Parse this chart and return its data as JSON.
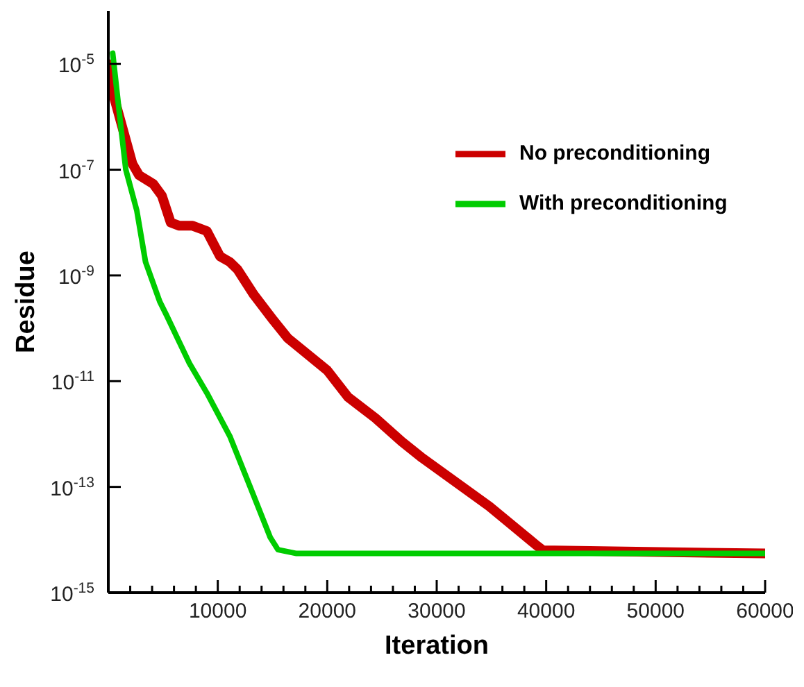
{
  "chart_data": {
    "type": "line",
    "xlabel": "Iteration",
    "ylabel": "Residue",
    "log": "y",
    "legend": "top right",
    "grid": false,
    "marker": "none",
    "line_style": "solid",
    "xlim": [
      0,
      60000
    ],
    "ylim": [
      1e-15,
      0.0001
    ],
    "xticks": [
      {
        "value": 2000,
        "label": null
      },
      {
        "value": 4000,
        "label": null
      },
      {
        "value": 6000,
        "label": null
      },
      {
        "value": 8000,
        "label": null
      },
      10000,
      {
        "value": 12000,
        "label": null
      },
      {
        "value": 14000,
        "label": null
      },
      {
        "value": 16000,
        "label": null
      },
      {
        "value": 18000,
        "label": null
      },
      20000,
      {
        "value": 22000,
        "label": null
      },
      {
        "value": 24000,
        "label": null
      },
      {
        "value": 26000,
        "label": null
      },
      {
        "value": 28000,
        "label": null
      },
      30000,
      {
        "value": 32000,
        "label": null
      },
      {
        "value": 34000,
        "label": null
      },
      {
        "value": 36000,
        "label": null
      },
      {
        "value": 38000,
        "label": null
      },
      40000,
      {
        "value": 42000,
        "label": null
      },
      {
        "value": 44000,
        "label": null
      },
      {
        "value": 46000,
        "label": null
      },
      {
        "value": 48000,
        "label": null
      },
      50000,
      {
        "value": 52000,
        "label": null
      },
      {
        "value": 54000,
        "label": null
      },
      {
        "value": 56000,
        "label": null
      },
      {
        "value": 58000,
        "label": null
      },
      60000
    ],
    "yticks": [
      {
        "value": 1e-15,
        "label": "10$^{-15}$"
      },
      {
        "value": 1e-13,
        "label": "10$^{-13}$"
      },
      {
        "value": 1e-11,
        "label": "10$^{-11}$"
      },
      {
        "value": 1e-09,
        "label": "10$^{-9}$"
      },
      {
        "value": 1e-07,
        "label": "10$^{-7}$"
      },
      {
        "value": 1e-05,
        "label": "10$^{-5}$"
      }
    ],
    "series": [
      {
        "name": "No preconditioning",
        "color": "#cc0000",
        "x": [
          0,
          400,
          2200,
          2800,
          4100,
          4900,
          5700,
          6500,
          7700,
          9000,
          10200,
          11100,
          11800,
          13300,
          15100,
          16400,
          20000,
          21900,
          24400,
          26800,
          28700,
          34800,
          39100,
          39700,
          60000
        ],
        "values": [
          1e-05,
          2.9e-06,
          1.3e-07,
          7.9e-08,
          5.4e-08,
          3.2e-08,
          1e-08,
          8.7e-09,
          8.7e-09,
          6.9e-09,
          2.3e-09,
          1.8e-09,
          1.3e-09,
          4.3e-10,
          1.4e-10,
          6.5e-11,
          1.6e-11,
          5e-12,
          2e-12,
          7.2e-13,
          3.5e-13,
          4.3e-14,
          7.9e-15,
          6.3e-15,
          5.5e-15
        ]
      },
      {
        "name": "With preconditioning",
        "color": "#00cc00",
        "x": [
          400,
          1200,
          1600,
          2600,
          3400,
          4700,
          5300,
          7400,
          9000,
          11100,
          13000,
          14800,
          15500,
          17200,
          60000
        ],
        "values": [
          1.6e-05,
          5.2e-07,
          1e-07,
          1.7e-08,
          1.8e-09,
          3.2e-10,
          1.8e-10,
          2.2e-11,
          6e-12,
          9.1e-13,
          9.5e-14,
          1.1e-14,
          6.5e-15,
          5.5e-15,
          5.5e-15
        ]
      }
    ]
  }
}
